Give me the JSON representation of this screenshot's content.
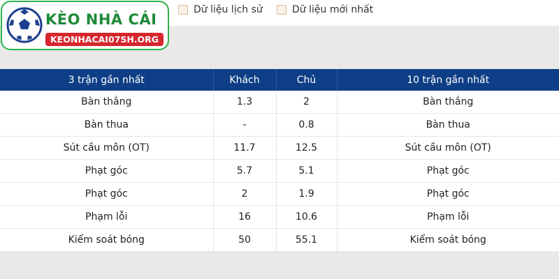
{
  "logo": {
    "title": "KÈO NHÀ CÁI",
    "domain": "KEONHACAI07SH.ORG"
  },
  "filters": [
    "Dữ liệu lịch sử",
    "Dữ liệu mới nhất"
  ],
  "table": {
    "headers": [
      "3 trận gần nhất",
      "Khách",
      "Chủ",
      "10 trận gần nhất"
    ],
    "rows": [
      [
        "Bàn thắng",
        "1.3",
        "2",
        "Bàn thắng"
      ],
      [
        "Bàn thua",
        "-",
        "0.8",
        "Bàn thua"
      ],
      [
        "Sút cầu môn (OT)",
        "11.7",
        "12.5",
        "Sút cầu môn (OT)"
      ],
      [
        "Phạt góc",
        "5.7",
        "5.1",
        "Phạt góc"
      ],
      [
        "Phạt góc",
        "2",
        "1.9",
        "Phạt góc"
      ],
      [
        "Phạm lỗi",
        "16",
        "10.6",
        "Phạm lỗi"
      ],
      [
        "Kiểm soát bóng",
        "50",
        "55.1",
        "Kiểm soát bóng"
      ]
    ]
  }
}
